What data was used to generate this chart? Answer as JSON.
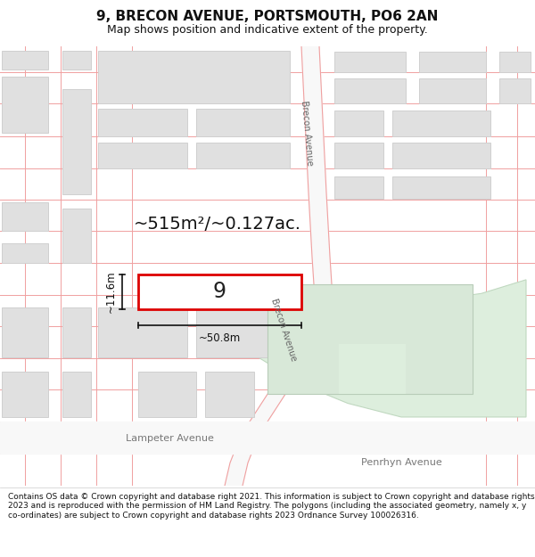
{
  "title": "9, BRECON AVENUE, PORTSMOUTH, PO6 2AN",
  "subtitle": "Map shows position and indicative extent of the property.",
  "footer": "Contains OS data © Crown copyright and database right 2021. This information is subject to Crown copyright and database rights 2023 and is reproduced with the permission of HM Land Registry. The polygons (including the associated geometry, namely x, y co-ordinates) are subject to Crown copyright and database rights 2023 Ordnance Survey 100026316.",
  "bg_color": "#ffffff",
  "map_bg": "#ffffff",
  "block_color": "#e0e0e0",
  "block_edge": "#d0d0d0",
  "road_line_color": "#f0a0a0",
  "highlight_color": "#dd0000",
  "highlight_fill": "#ffffff",
  "green_area_color": "#ddeedd",
  "green_area_edge": "#c0d8c0",
  "area_label": "~515m²/~0.127ac.",
  "width_label": "~50.8m",
  "height_label": "~11.6m",
  "number_label": "9",
  "street_brecon_upper": "Brecon Avenue",
  "street_brecon_lower": "Brecon Avenue",
  "street_lampeter": "Lampeter Avenue",
  "street_penrhyn": "Penrhyn Avenue"
}
